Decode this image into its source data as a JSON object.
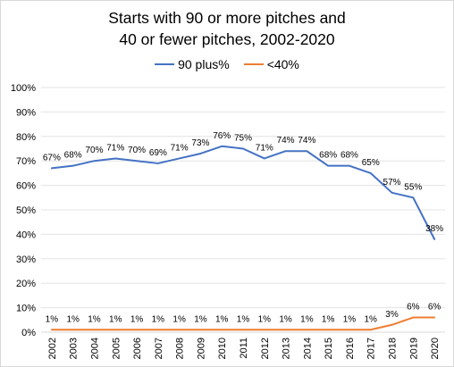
{
  "chart_data": {
    "type": "line",
    "title_lines": [
      "Starts with 90 or more pitches and",
      "40 or fewer pitches, 2002-2020"
    ],
    "categories": [
      "2002",
      "2003",
      "2004",
      "2005",
      "2006",
      "2007",
      "2008",
      "2009",
      "2010",
      "2011",
      "2012",
      "2013",
      "2014",
      "2015",
      "2016",
      "2017",
      "2018",
      "2019",
      "2020"
    ],
    "series": [
      {
        "name": "90 plus%",
        "color": "#4472C4",
        "values": [
          67,
          68,
          70,
          71,
          70,
          69,
          71,
          73,
          76,
          75,
          71,
          74,
          74,
          68,
          68,
          65,
          57,
          55,
          38
        ],
        "labels": [
          "67%",
          "68%",
          "70%",
          "71%",
          "70%",
          "69%",
          "71%",
          "73%",
          "76%",
          "75%",
          "71%",
          "74%",
          "74%",
          "68%",
          "68%",
          "65%",
          "57%",
          "55%",
          "38%"
        ]
      },
      {
        "name": "<40%",
        "color": "#ED7D31",
        "values": [
          1,
          1,
          1,
          1,
          1,
          1,
          1,
          1,
          1,
          1,
          1,
          1,
          1,
          1,
          1,
          1,
          3,
          6,
          6
        ],
        "labels": [
          "1%",
          "1%",
          "1%",
          "1%",
          "1%",
          "1%",
          "1%",
          "1%",
          "1%",
          "1%",
          "1%",
          "1%",
          "1%",
          "1%",
          "1%",
          "1%",
          "3%",
          "6%",
          "6%"
        ]
      }
    ],
    "ylim": [
      0,
      100
    ],
    "yticks": [
      "0%",
      "10%",
      "20%",
      "30%",
      "40%",
      "50%",
      "60%",
      "70%",
      "80%",
      "90%",
      "100%"
    ],
    "xlabel": "",
    "ylabel": "",
    "grid": true,
    "legend_position": "top"
  }
}
